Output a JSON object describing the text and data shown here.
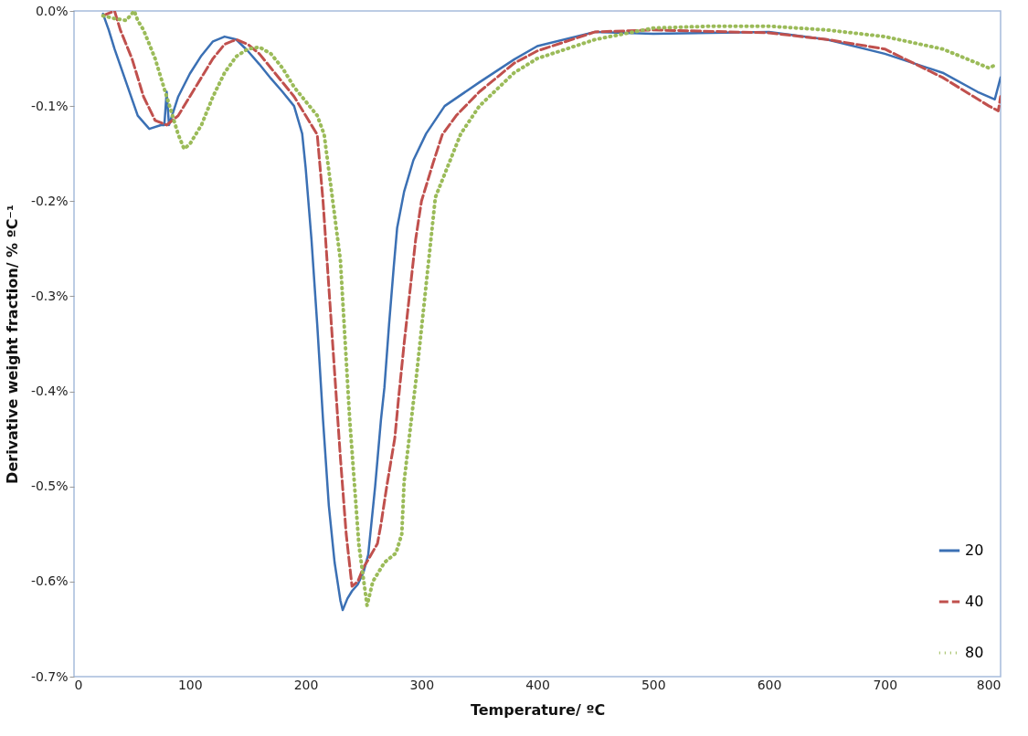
{
  "chart_data": {
    "type": "line",
    "xlabel": "Temperature/ ºC",
    "ylabel": "Derivative weight fraction/ % ºC⁻¹",
    "xlim": [
      0,
      800
    ],
    "xticks": [
      0,
      100,
      200,
      300,
      400,
      500,
      600,
      700,
      800
    ],
    "ylim": [
      -0.7,
      0
    ],
    "yticks": [
      {
        "value": -0.7,
        "label": "-0.7%"
      },
      {
        "value": -0.6,
        "label": "-0.6%"
      },
      {
        "value": -0.5,
        "label": "-0.5%"
      },
      {
        "value": -0.4,
        "label": "-0.4%"
      },
      {
        "value": -0.3,
        "label": "-0.3%"
      },
      {
        "value": -0.2,
        "label": "-0.2%"
      },
      {
        "value": -0.1,
        "label": "-0.1%"
      },
      {
        "value": 0,
        "label": "0.0%"
      }
    ],
    "grid": false,
    "legend": "bottom right",
    "marker": "none",
    "series": [
      {
        "name": "20",
        "color": "#3b70b4",
        "line_style": "solid",
        "x": [
          25,
          30,
          35,
          45,
          55,
          65,
          75,
          78,
          80,
          82,
          90,
          100,
          110,
          120,
          130,
          140,
          150,
          160,
          170,
          180,
          190,
          197,
          200,
          205,
          210,
          215,
          220,
          225,
          230,
          232,
          236,
          240,
          245,
          250,
          254,
          260,
          265,
          268,
          272,
          276,
          279,
          285,
          293,
          304,
          320,
          350,
          380,
          400,
          450,
          500,
          600,
          650,
          700,
          750,
          780,
          795,
          800
        ],
        "values": [
          -0.003,
          -0.02,
          -0.04,
          -0.075,
          -0.11,
          -0.124,
          -0.12,
          -0.12,
          -0.085,
          -0.12,
          -0.09,
          -0.066,
          -0.047,
          -0.032,
          -0.027,
          -0.03,
          -0.042,
          -0.056,
          -0.071,
          -0.085,
          -0.1,
          -0.129,
          -0.165,
          -0.24,
          -0.33,
          -0.43,
          -0.52,
          -0.58,
          -0.62,
          -0.63,
          -0.618,
          -0.61,
          -0.603,
          -0.59,
          -0.572,
          -0.5,
          -0.43,
          -0.396,
          -0.33,
          -0.27,
          -0.228,
          -0.19,
          -0.157,
          -0.129,
          -0.1,
          -0.075,
          -0.051,
          -0.037,
          -0.022,
          -0.024,
          -0.022,
          -0.03,
          -0.045,
          -0.065,
          -0.085,
          -0.093,
          -0.07
        ]
      },
      {
        "name": "40",
        "color": "#c0504d",
        "line_style": "dashed",
        "x": [
          25,
          35,
          40,
          50,
          60,
          70,
          80,
          90,
          100,
          110,
          120,
          130,
          140,
          150,
          160,
          170,
          180,
          190,
          200,
          210,
          215,
          220,
          225,
          230,
          235,
          240,
          245,
          250,
          255,
          262,
          265,
          270,
          277,
          280,
          285,
          290,
          295,
          300,
          310,
          318,
          330,
          350,
          380,
          400,
          450,
          500,
          600,
          650,
          700,
          750,
          790,
          798,
          800
        ],
        "values": [
          -0.005,
          0,
          -0.02,
          -0.05,
          -0.09,
          -0.115,
          -0.12,
          -0.11,
          -0.09,
          -0.07,
          -0.05,
          -0.035,
          -0.03,
          -0.035,
          -0.045,
          -0.06,
          -0.075,
          -0.09,
          -0.11,
          -0.13,
          -0.2,
          -0.29,
          -0.38,
          -0.47,
          -0.55,
          -0.605,
          -0.6,
          -0.585,
          -0.575,
          -0.56,
          -0.54,
          -0.5,
          -0.449,
          -0.41,
          -0.35,
          -0.295,
          -0.24,
          -0.2,
          -0.16,
          -0.13,
          -0.11,
          -0.085,
          -0.055,
          -0.042,
          -0.022,
          -0.02,
          -0.023,
          -0.03,
          -0.04,
          -0.07,
          -0.1,
          -0.105,
          -0.09
        ]
      },
      {
        "name": "80",
        "color": "#9bbb59",
        "line_style": "dotted",
        "x": [
          25,
          35,
          45,
          52,
          55,
          60,
          70,
          80,
          90,
          95,
          100,
          110,
          120,
          130,
          140,
          150,
          160,
          170,
          180,
          190,
          200,
          210,
          216,
          230,
          238,
          246,
          253,
          258,
          268,
          278,
          283,
          285,
          296,
          312,
          334,
          350,
          380,
          400,
          450,
          500,
          550,
          600,
          650,
          700,
          750,
          790,
          795
        ],
        "values": [
          -0.005,
          -0.008,
          -0.01,
          0,
          -0.01,
          -0.02,
          -0.05,
          -0.09,
          -0.13,
          -0.145,
          -0.14,
          -0.12,
          -0.09,
          -0.065,
          -0.048,
          -0.04,
          -0.038,
          -0.045,
          -0.06,
          -0.08,
          -0.095,
          -0.11,
          -0.13,
          -0.262,
          -0.429,
          -0.562,
          -0.625,
          -0.6,
          -0.58,
          -0.57,
          -0.55,
          -0.495,
          -0.38,
          -0.196,
          -0.129,
          -0.1,
          -0.065,
          -0.05,
          -0.03,
          -0.018,
          -0.016,
          -0.016,
          -0.02,
          -0.027,
          -0.04,
          -0.06,
          -0.057
        ]
      }
    ]
  }
}
